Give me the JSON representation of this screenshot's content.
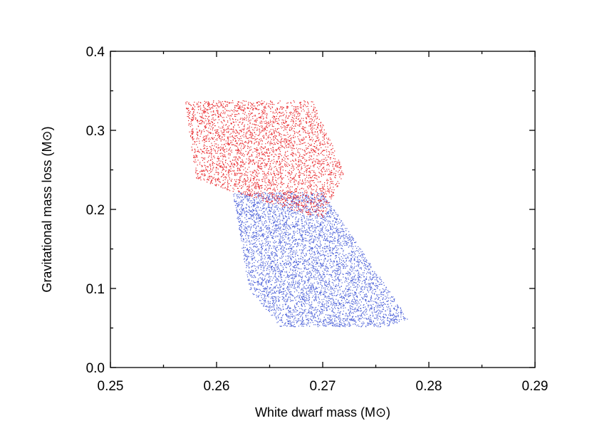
{
  "chart_data": {
    "type": "scatter",
    "title": "",
    "xlabel": "White dwarf mass (M⊙)",
    "ylabel": "Gravitational mass loss (M⊙)",
    "xlim": [
      0.25,
      0.29
    ],
    "ylim": [
      0.0,
      0.4
    ],
    "x_ticks": [
      "0.25",
      "0.26",
      "0.27",
      "0.28",
      "0.29"
    ],
    "y_ticks": [
      "0.0",
      "0.1",
      "0.2",
      "0.3",
      "0.4"
    ],
    "grid": false,
    "series": [
      {
        "color": "#4a5fd8",
        "marker": "dot",
        "point_count": 5000,
        "region_polygon": [
          [
            0.2615,
            0.222
          ],
          [
            0.27,
            0.222
          ],
          [
            0.278,
            0.062
          ],
          [
            0.276,
            0.052
          ],
          [
            0.266,
            0.052
          ],
          [
            0.263,
            0.1
          ]
        ]
      },
      {
        "color": "#e8262a",
        "marker": "dot",
        "point_count": 3500,
        "region_polygon": [
          [
            0.257,
            0.338
          ],
          [
            0.269,
            0.338
          ],
          [
            0.272,
            0.248
          ],
          [
            0.27,
            0.188
          ],
          [
            0.261,
            0.225
          ],
          [
            0.258,
            0.24
          ]
        ]
      }
    ]
  }
}
